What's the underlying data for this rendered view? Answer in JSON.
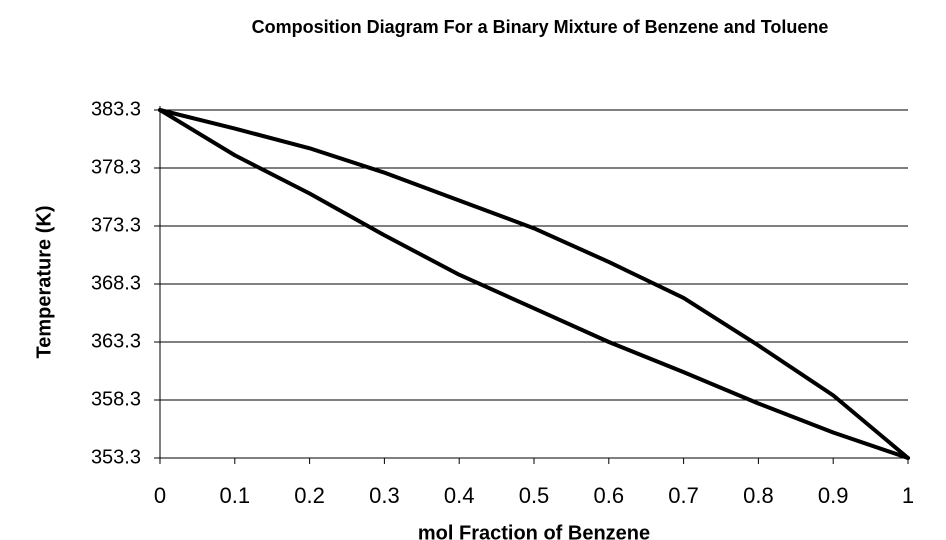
{
  "chart_data": {
    "type": "line",
    "title": "Composition Diagram For a Binary Mixture of Benzene and Toluene",
    "xlabel": "mol Fraction of Benzene",
    "ylabel": "Temperature (K)",
    "x": [
      0,
      0.1,
      0.2,
      0.3,
      0.4,
      0.5,
      0.6,
      0.7,
      0.8,
      0.9,
      1
    ],
    "series": [
      {
        "color": "#000000",
        "values": [
          383.3,
          379.4,
          376.1,
          372.5,
          369.1,
          366.2,
          363.3,
          360.7,
          358.0,
          355.5,
          353.3
        ]
      },
      {
        "color": "#000000",
        "values": [
          383.3,
          381.7,
          380.0,
          377.9,
          375.5,
          373.1,
          370.2,
          367.1,
          363.0,
          358.7,
          353.3
        ]
      }
    ],
    "xlim": [
      0,
      1
    ],
    "xticks": [
      0,
      0.1,
      0.2,
      0.3,
      0.4,
      0.5,
      0.6,
      0.7,
      0.8,
      0.9,
      1
    ],
    "ylim": [
      353.3,
      383.3
    ],
    "yticks": [
      353.3,
      358.3,
      363.3,
      368.3,
      373.3,
      378.3,
      383.3
    ],
    "grid": true
  }
}
